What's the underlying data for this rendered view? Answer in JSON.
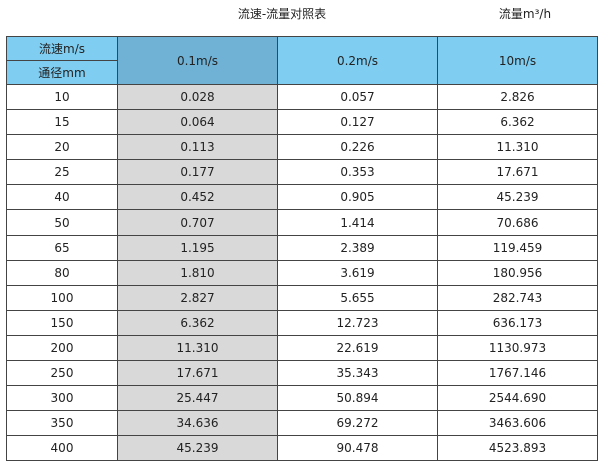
{
  "title": "流速-流量对照表",
  "unit": "流量m³/h",
  "header": {
    "velocity_label": "流速m/s",
    "diameter_label": "通径mm",
    "columns": [
      "0.1m/s",
      "0.2m/s",
      "10m/s"
    ]
  },
  "colors": {
    "header": "#7fcdf1",
    "header_selected": "#6fb2d6",
    "highlight_column": "#d9d9d9"
  },
  "rows": [
    [
      "10",
      "0.028",
      "0.057",
      "2.826"
    ],
    [
      "15",
      "0.064",
      "0.127",
      "6.362"
    ],
    [
      "20",
      "0.113",
      "0.226",
      "11.310"
    ],
    [
      "25",
      "0.177",
      "0.353",
      "17.671"
    ],
    [
      "40",
      "0.452",
      "0.905",
      "45.239"
    ],
    [
      "50",
      "0.707",
      "1.414",
      "70.686"
    ],
    [
      "65",
      "1.195",
      "2.389",
      "119.459"
    ],
    [
      "80",
      "1.810",
      "3.619",
      "180.956"
    ],
    [
      "100",
      "2.827",
      "5.655",
      "282.743"
    ],
    [
      "150",
      "6.362",
      "12.723",
      "636.173"
    ],
    [
      "200",
      "11.310",
      "22.619",
      "1130.973"
    ],
    [
      "250",
      "17.671",
      "35.343",
      "1767.146"
    ],
    [
      "300",
      "25.447",
      "50.894",
      "2544.690"
    ],
    [
      "350",
      "34.636",
      "69.272",
      "3463.606"
    ],
    [
      "400",
      "45.239",
      "90.478",
      "4523.893"
    ]
  ]
}
